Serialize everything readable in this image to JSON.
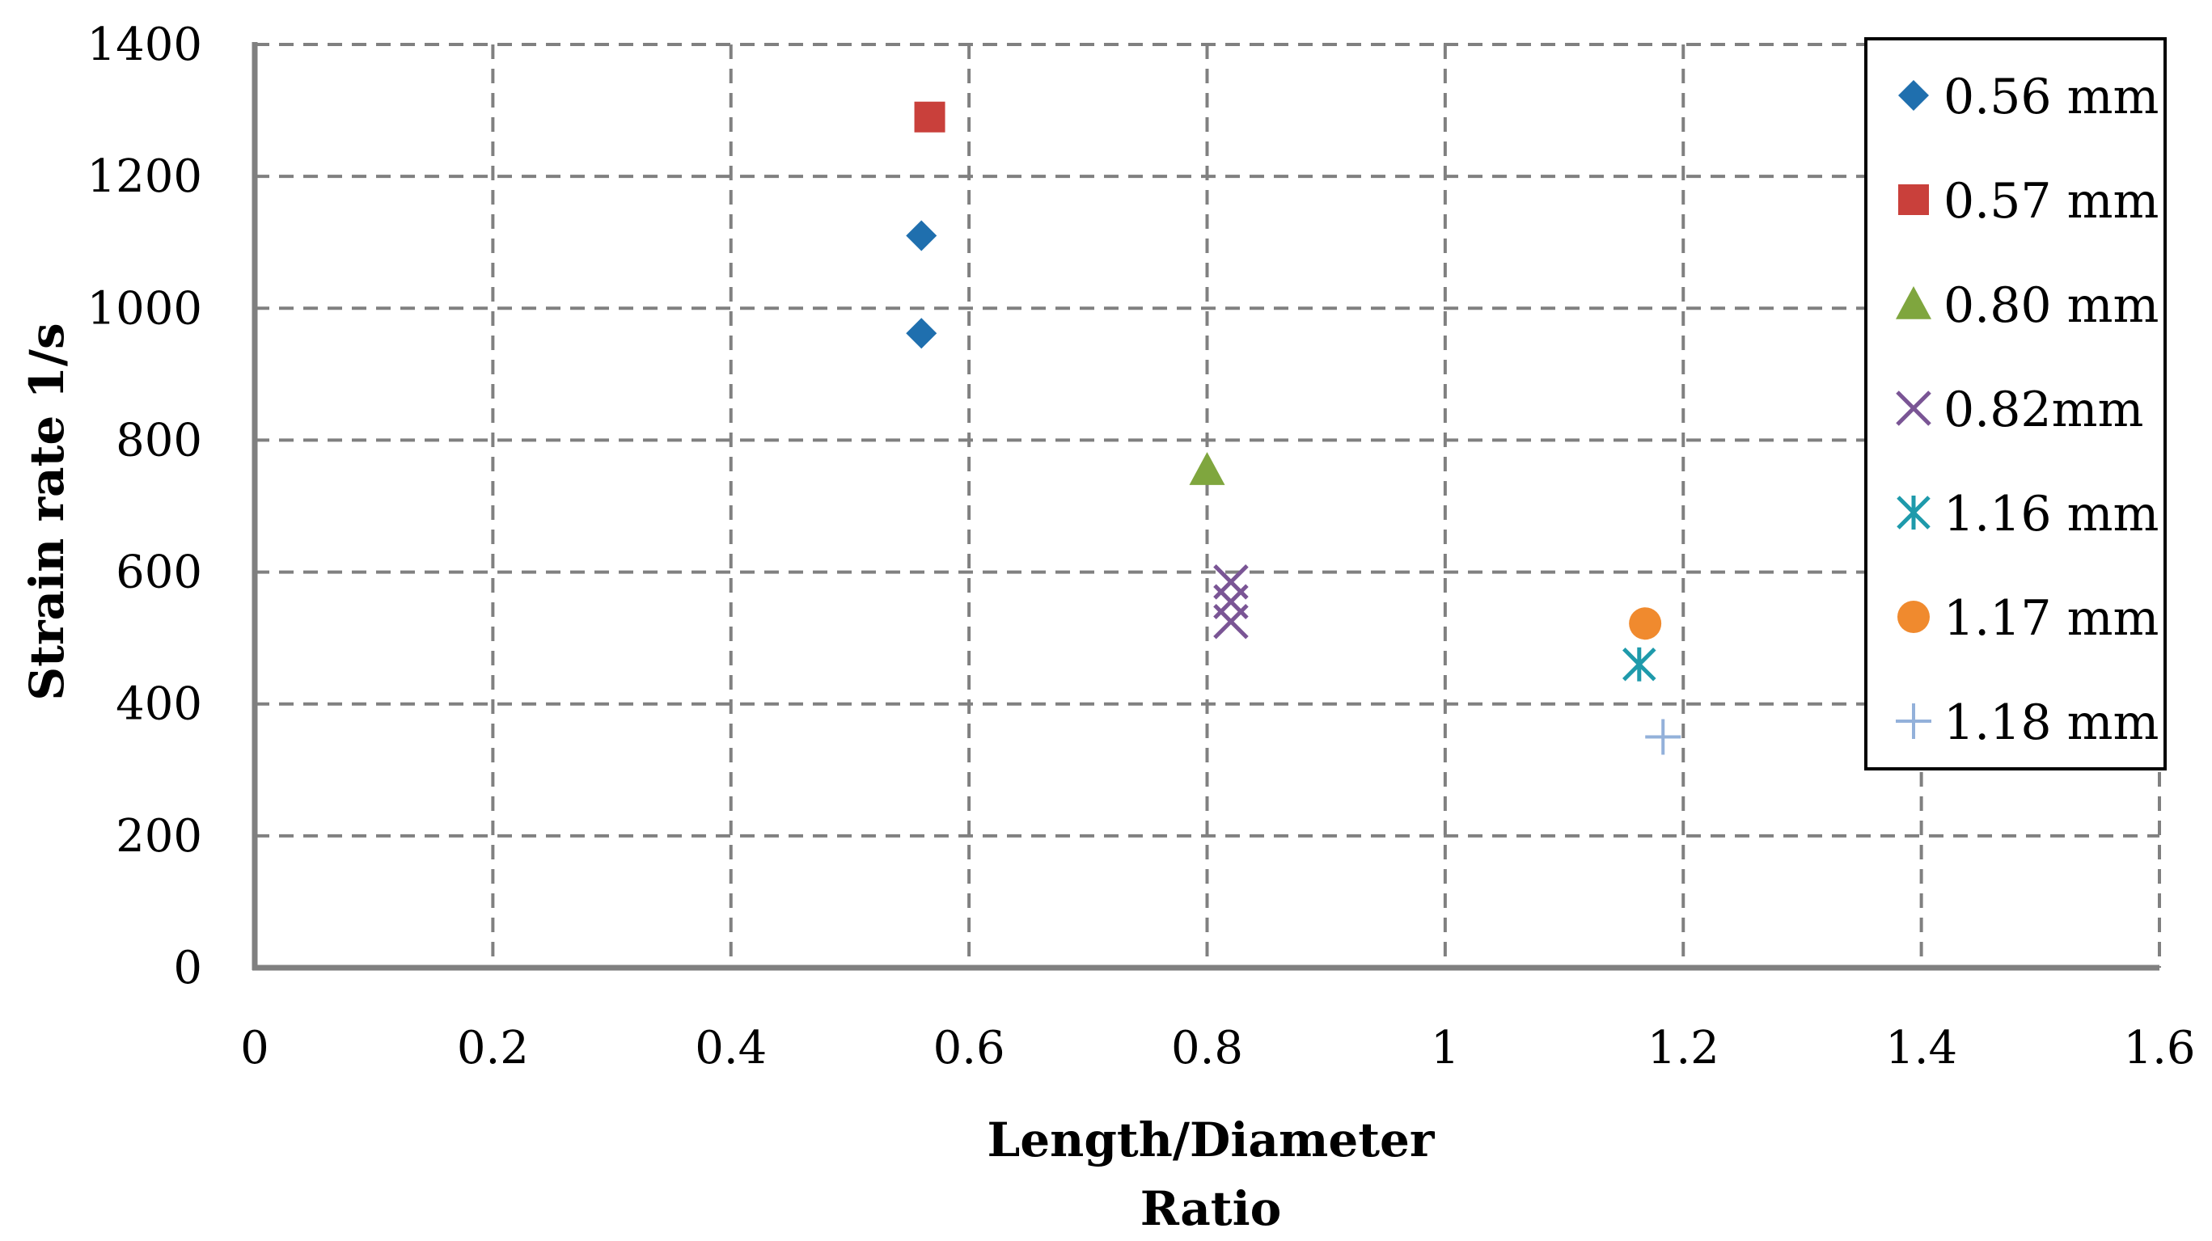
{
  "chart_data": {
    "type": "scatter",
    "xlabel": [
      "Length/Diameter",
      "Ratio"
    ],
    "ylabel": "Strain rate 1/s",
    "xlim": [
      0,
      1.6
    ],
    "ylim": [
      0,
      1400
    ],
    "x_ticks": [
      "0",
      "0.2",
      "0.4",
      "0.6",
      "0.8",
      "1",
      "1.2",
      "1.4",
      "1.6"
    ],
    "y_ticks": [
      "0",
      "200",
      "400",
      "600",
      "800",
      "1000",
      "1200",
      "1400"
    ],
    "grid": true,
    "legend_position": "top-right",
    "series": [
      {
        "name": "0.56 mm",
        "marker": "diamond",
        "color": "#1F6FAE",
        "points": [
          {
            "x": 0.56,
            "y": 1110
          },
          {
            "x": 0.56,
            "y": 962
          }
        ]
      },
      {
        "name": "0.57 mm",
        "marker": "square",
        "color": "#C9403B",
        "points": [
          {
            "x": 0.567,
            "y": 1290
          }
        ]
      },
      {
        "name": "0.80 mm",
        "marker": "triangle",
        "color": "#7FA63E",
        "points": [
          {
            "x": 0.8,
            "y": 755
          }
        ]
      },
      {
        "name": "0.82mm",
        "marker": "x",
        "color": "#7A5595",
        "points": [
          {
            "x": 0.82,
            "y": 585
          },
          {
            "x": 0.82,
            "y": 555
          },
          {
            "x": 0.82,
            "y": 525
          }
        ]
      },
      {
        "name": "1.16 mm",
        "marker": "star",
        "color": "#1E9AAB",
        "points": [
          {
            "x": 1.163,
            "y": 460
          }
        ]
      },
      {
        "name": "1.17 mm",
        "marker": "circle",
        "color": "#F08A2E",
        "points": [
          {
            "x": 1.168,
            "y": 522
          }
        ]
      },
      {
        "name": "1.18 mm",
        "marker": "plus",
        "color": "#93B1DA",
        "points": [
          {
            "x": 1.183,
            "y": 350
          }
        ]
      }
    ]
  }
}
